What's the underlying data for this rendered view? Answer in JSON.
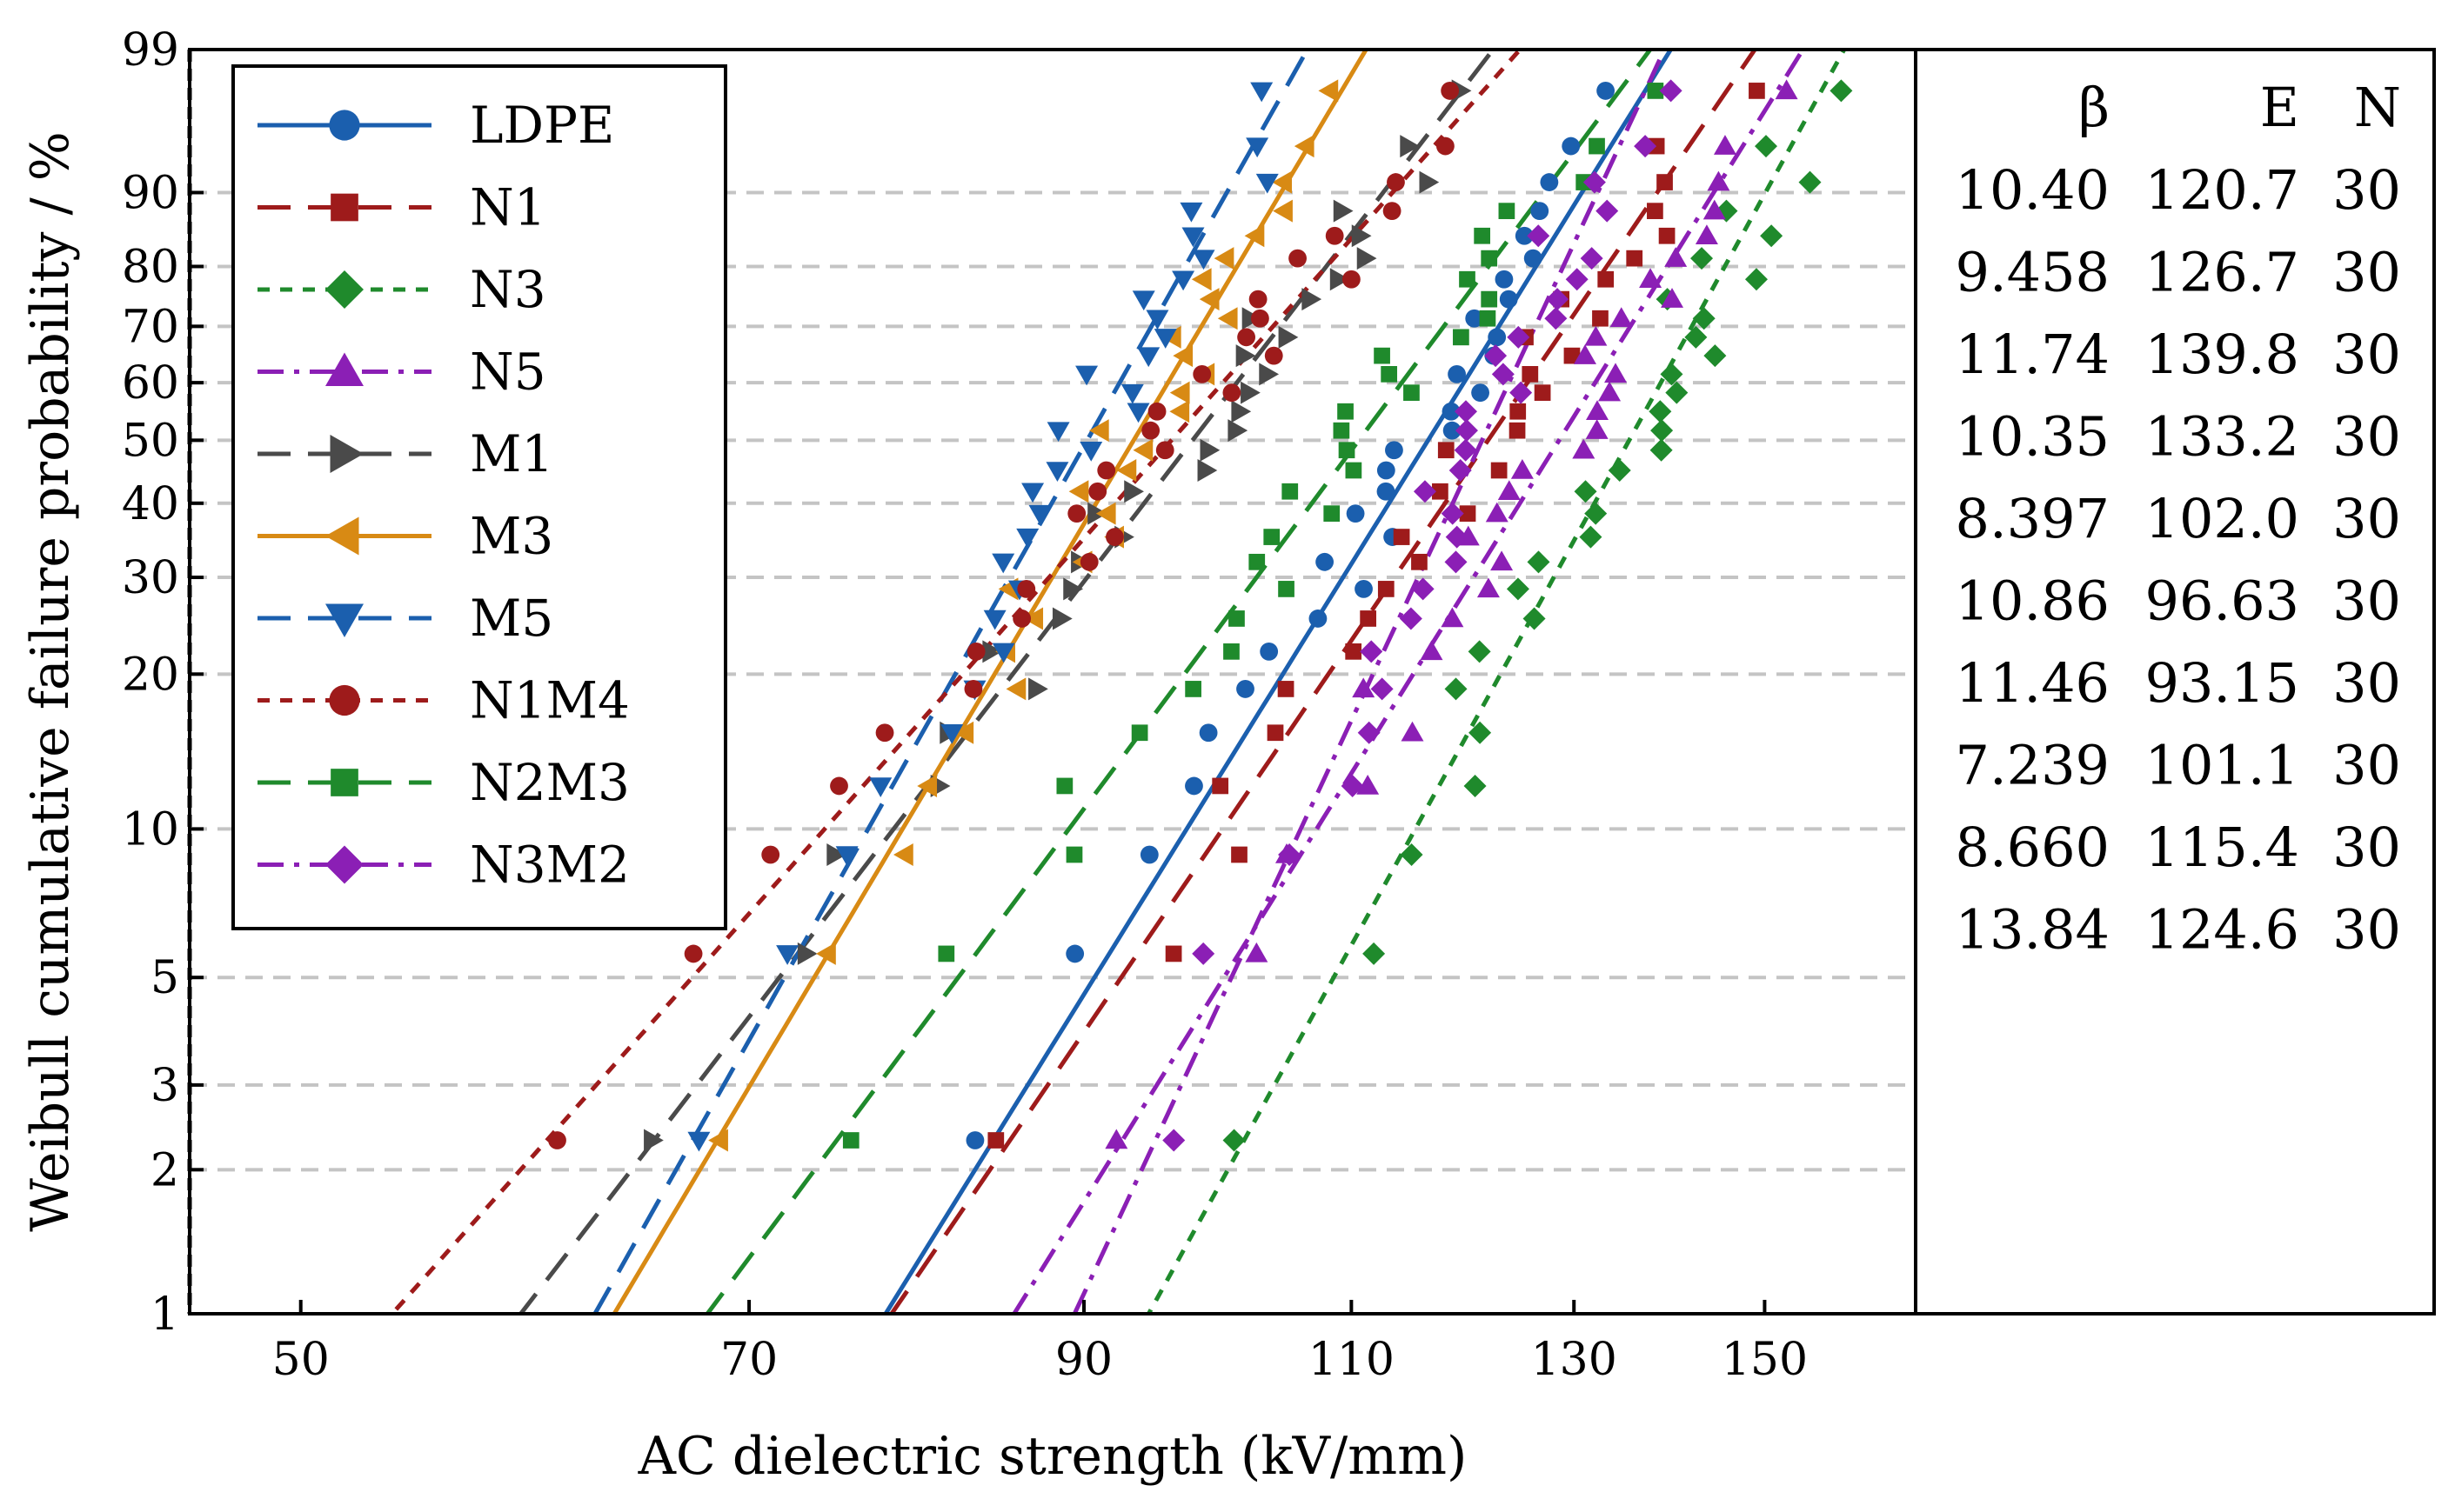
{
  "chart_data": {
    "type": "scatter",
    "title": "",
    "xlabel": "AC dielectric strength (kV/mm)",
    "ylabel": "Weibull cumulative failure probability / %",
    "x_scale": "log",
    "y_scale": "weibull",
    "xlim": [
      46,
      168
    ],
    "ylim": [
      1,
      99
    ],
    "x_ticks": [
      50,
      70,
      90,
      110,
      130,
      150
    ],
    "x_tick_labels": [
      "50",
      "70",
      "90",
      "110",
      "130",
      "150"
    ],
    "y_ticks": [
      1,
      2,
      3,
      5,
      10,
      20,
      30,
      40,
      50,
      60,
      70,
      80,
      90,
      99
    ],
    "y_tick_labels": [
      "1",
      "2",
      "3",
      "5",
      "10",
      "20",
      "30",
      "40",
      "50",
      "60",
      "70",
      "80",
      "90",
      "99"
    ],
    "grid": "horizontal dashed",
    "legend_position": "top-left",
    "sample_size": 30,
    "table": {
      "headers": [
        "β",
        "E",
        "N"
      ],
      "rows": [
        [
          "10.40",
          "120.7",
          "30"
        ],
        [
          "9.458",
          "126.7",
          "30"
        ],
        [
          "11.74",
          "139.8",
          "30"
        ],
        [
          "10.35",
          "133.2",
          "30"
        ],
        [
          "8.397",
          "102.0",
          "30"
        ],
        [
          "10.86",
          "96.63",
          "30"
        ],
        [
          "11.46",
          "93.15",
          "30"
        ],
        [
          "7.239",
          "101.1",
          "30"
        ],
        [
          "8.660",
          "115.4",
          "30"
        ],
        [
          "13.84",
          "124.6",
          "30"
        ]
      ]
    },
    "series": [
      {
        "name": "LDPE",
        "beta": 10.4,
        "eta": 120.7,
        "color": "#1b5fae",
        "marker": "circle",
        "dash": "solid"
      },
      {
        "name": "N1",
        "beta": 9.458,
        "eta": 126.7,
        "color": "#9e1b1b",
        "marker": "square",
        "dash": "long-dash"
      },
      {
        "name": "N3",
        "beta": 11.74,
        "eta": 139.8,
        "color": "#1f8a2c",
        "marker": "diamond",
        "dash": "short-dash"
      },
      {
        "name": "N5",
        "beta": 10.35,
        "eta": 133.2,
        "color": "#8b1fb5",
        "marker": "triangle-up",
        "dash": "dash-dot"
      },
      {
        "name": "M1",
        "beta": 8.397,
        "eta": 102.0,
        "color": "#4a4a4a",
        "marker": "triangle-right",
        "dash": "long-dash"
      },
      {
        "name": "M3",
        "beta": 10.86,
        "eta": 96.63,
        "color": "#d88a14",
        "marker": "triangle-left",
        "dash": "solid"
      },
      {
        "name": "M5",
        "beta": 11.46,
        "eta": 93.15,
        "color": "#1b5fae",
        "marker": "triangle-down",
        "dash": "long-dash"
      },
      {
        "name": "N1M4",
        "beta": 7.239,
        "eta": 101.1,
        "color": "#9e1b1b",
        "marker": "circle",
        "dash": "short-dash"
      },
      {
        "name": "N2M3",
        "beta": 8.66,
        "eta": 115.4,
        "color": "#1f8a2c",
        "marker": "square",
        "dash": "long-dash"
      },
      {
        "name": "N3M2",
        "beta": 13.84,
        "eta": 124.6,
        "color": "#8b1fb5",
        "marker": "diamond",
        "dash": "dash-dot"
      }
    ]
  }
}
